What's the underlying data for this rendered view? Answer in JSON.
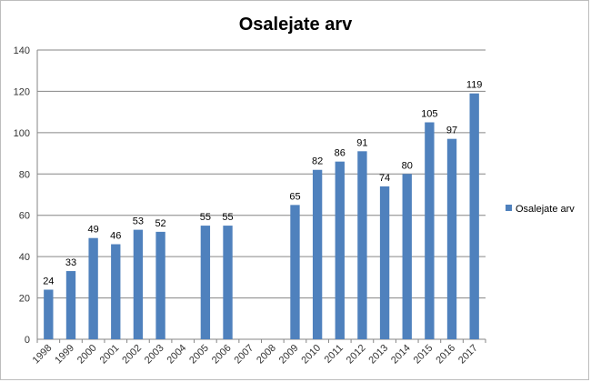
{
  "chart_data": {
    "type": "bar",
    "title": "Osalejate arv",
    "categories": [
      "1998",
      "1999",
      "2000",
      "2001",
      "2002",
      "2003",
      "2004",
      "2005",
      "2006",
      "2007",
      "2008",
      "2009",
      "2010",
      "2011",
      "2012",
      "2013",
      "2014",
      "2015",
      "2016",
      "2017"
    ],
    "series": [
      {
        "name": "Osalejate arv",
        "color": "#4f81bd",
        "values": [
          24,
          33,
          49,
          46,
          53,
          52,
          null,
          55,
          55,
          null,
          null,
          65,
          82,
          86,
          91,
          74,
          80,
          105,
          97,
          119
        ]
      }
    ],
    "y_ticks": [
      "0",
      "20",
      "40",
      "60",
      "80",
      "100",
      "120",
      "140"
    ],
    "ylim": [
      0,
      140
    ],
    "grid": true,
    "legend_position": "right"
  }
}
